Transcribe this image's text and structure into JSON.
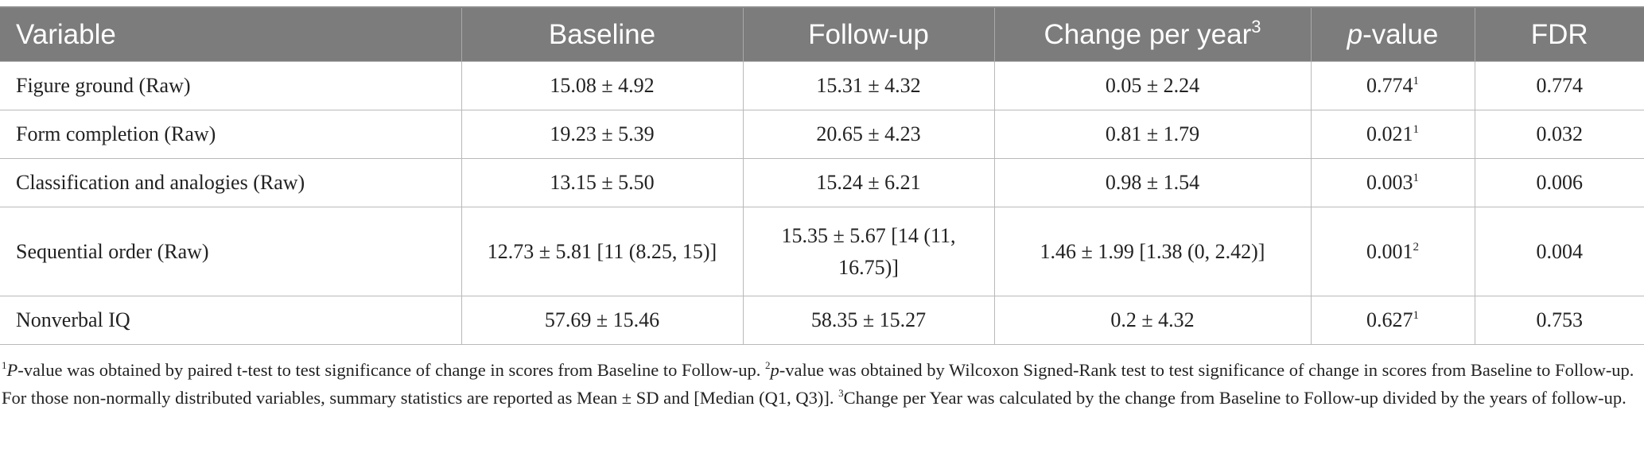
{
  "table": {
    "headers": [
      {
        "text": "Variable",
        "sup": ""
      },
      {
        "text": "Baseline",
        "sup": ""
      },
      {
        "text": "Follow-up",
        "sup": ""
      },
      {
        "text": "Change per year",
        "sup": "3"
      },
      {
        "text": "-value",
        "italic_prefix": "p",
        "sup": ""
      },
      {
        "text": "FDR",
        "sup": ""
      }
    ],
    "rows": [
      {
        "variable": "Figure ground (Raw)",
        "baseline": "15.08 ± 4.92",
        "followup": "15.31 ± 4.32",
        "change": "0.05 ± 2.24",
        "pvalue": "0.774",
        "psup": "1",
        "fdr": "0.774"
      },
      {
        "variable": "Form completion (Raw)",
        "baseline": "19.23 ± 5.39",
        "followup": "20.65 ± 4.23",
        "change": "0.81 ± 1.79",
        "pvalue": "0.021",
        "psup": "1",
        "fdr": "0.032"
      },
      {
        "variable": "Classification and analogies (Raw)",
        "baseline": "13.15 ± 5.50",
        "followup": "15.24 ± 6.21",
        "change": "0.98 ± 1.54",
        "pvalue": "0.003",
        "psup": "1",
        "fdr": "0.006"
      },
      {
        "variable": "Sequential order (Raw)",
        "baseline": "12.73 ± 5.81 [11 (8.25, 15)]",
        "followup": "15.35 ± 5.67 [14 (11, 16.75)]",
        "change": "1.46 ± 1.99 [1.38 (0, 2.42)]",
        "pvalue": "0.001",
        "psup": "2",
        "fdr": "0.004"
      },
      {
        "variable": "Nonverbal IQ",
        "baseline": "57.69 ± 15.46",
        "followup": "58.35 ± 15.27",
        "change": "0.2 ± 4.32",
        "pvalue": "0.627",
        "psup": "1",
        "fdr": "0.753"
      }
    ]
  },
  "footnotes": {
    "n1_mark": "1",
    "n1_italic": "P",
    "n1_text": "-value was obtained by paired t-test to test significance of change in scores from Baseline to Follow-up. ",
    "n2_mark": "2",
    "n2_italic": "p",
    "n2_text": "-value was obtained by Wilcoxon Signed-Rank test to test significance of change in scores from Baseline to Follow-up. For those non-normally distributed variables, summary statistics are reported as Mean ± SD and [Median (Q1, Q3)]. ",
    "n3_mark": "3",
    "n3_text": "Change per Year was calculated by the change from Baseline to Follow-up divided by the years of follow-up."
  }
}
